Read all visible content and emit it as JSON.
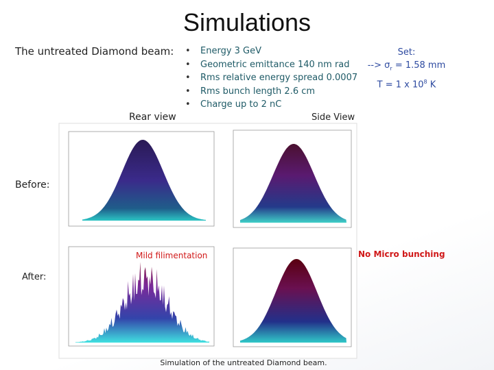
{
  "title": "Simulations",
  "left_label": "The untreated Diamond beam:",
  "bullets": [
    "Energy 3 GeV",
    "Geometric emittance 140 nm rad",
    "Rms relative energy spread 0.0007",
    "Rms bunch length 2.6 cm",
    "Charge up to 2 nC"
  ],
  "set": {
    "heading": "Set:",
    "line1": {
      "prefix": "--> σ",
      "sub": "r",
      "suffix": " = 1.58 mm"
    },
    "line2": {
      "prefix": "T = 1 x 10",
      "sup": "8",
      "suffix": " K"
    }
  },
  "rear_view": "Rear view",
  "side_view": "Side View",
  "before": "Before:",
  "after": "After:",
  "annotation_left": "Mild filimentation",
  "annotation_right": "No Micro bunching",
  "caption": "Simulation of the untreated Diamond beam."
}
